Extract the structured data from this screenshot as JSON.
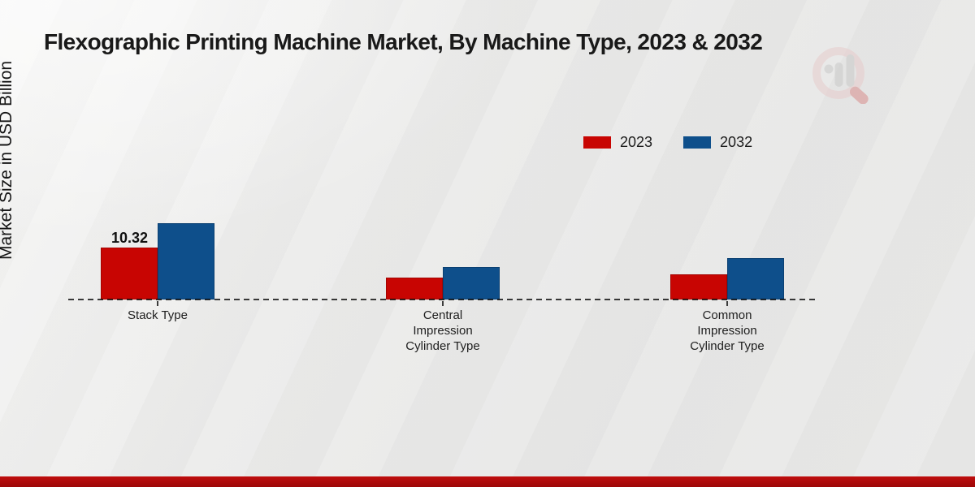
{
  "title": "Flexographic Printing Machine Market, By Machine Type, 2023 & 2032",
  "y_axis_label": "Market Size in USD Billion",
  "legend": {
    "position": "top-right",
    "items": [
      {
        "label": "2023",
        "color": "#c80502"
      },
      {
        "label": "2032",
        "color": "#0e4f8b"
      }
    ]
  },
  "chart_data": {
    "type": "bar",
    "title": "Flexographic Printing Machine Market, By Machine Type, 2023 & 2032",
    "ylabel": "Market Size in USD Billion",
    "xlabel": "",
    "categories": [
      "Stack Type",
      "Central Impression Cylinder Type",
      "Common Impression Cylinder Type"
    ],
    "series": [
      {
        "name": "2023",
        "color": "#c80502",
        "values": [
          10.32,
          4.4,
          5.0
        ]
      },
      {
        "name": "2032",
        "color": "#0e4f8b",
        "values": [
          15.2,
          6.4,
          8.2
        ]
      }
    ],
    "data_labels": [
      {
        "category": "Stack Type",
        "series": "2023",
        "text": "10.32"
      }
    ],
    "value_label": "10.32",
    "ylim": [
      0,
      18
    ],
    "grid": false,
    "axis_line_style": "dashed-baseline-only",
    "legend_position": "top-right"
  },
  "watermark": {
    "name": "market-research-magnifier-logo"
  },
  "footer": {
    "bar_color": "#b00b0b"
  }
}
